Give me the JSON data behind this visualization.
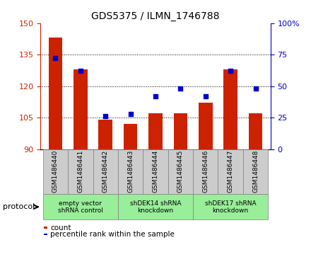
{
  "title": "GDS5375 / ILMN_1746788",
  "samples": [
    "GSM1486440",
    "GSM1486441",
    "GSM1486442",
    "GSM1486443",
    "GSM1486444",
    "GSM1486445",
    "GSM1486446",
    "GSM1486447",
    "GSM1486448"
  ],
  "counts": [
    143,
    128,
    104,
    102,
    107,
    107,
    112,
    128,
    107
  ],
  "percentiles": [
    72,
    62,
    26,
    28,
    42,
    48,
    42,
    62,
    48
  ],
  "ylim_left": [
    90,
    150
  ],
  "ylim_right": [
    0,
    100
  ],
  "yticks_left": [
    90,
    105,
    120,
    135,
    150
  ],
  "yticks_right": [
    0,
    25,
    50,
    75,
    100
  ],
  "bar_color": "#CC2200",
  "dot_color": "#0000CC",
  "bg_color": "#FFFFFF",
  "gray_box_color": "#CCCCCC",
  "green_box_color": "#99EE99",
  "protocol_groups": [
    {
      "label": "empty vector\nshRNA control",
      "start": 0,
      "end": 3
    },
    {
      "label": "shDEK14 shRNA\nknockdown",
      "start": 3,
      "end": 6
    },
    {
      "label": "shDEK17 shRNA\nknockdown",
      "start": 6,
      "end": 9
    }
  ],
  "legend_count_label": "count",
  "legend_percentile_label": "percentile rank within the sample",
  "protocol_label": "protocol",
  "bar_width": 0.55,
  "dotted_gridlines": [
    105,
    120,
    135
  ]
}
